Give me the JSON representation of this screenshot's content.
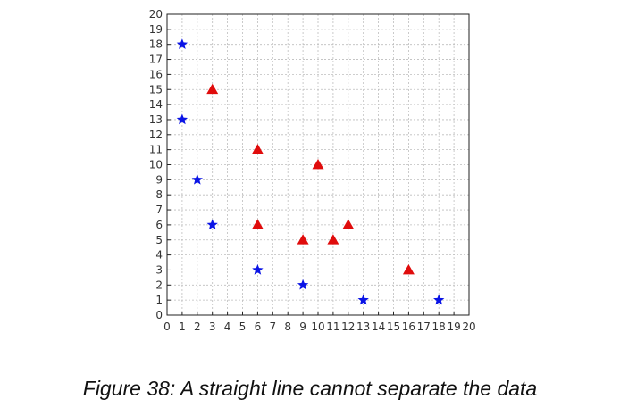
{
  "chart_data": {
    "type": "scatter",
    "title": "",
    "xlabel": "",
    "ylabel": "",
    "xlim": [
      0,
      20
    ],
    "ylim": [
      0,
      20
    ],
    "x_ticks": [
      0,
      1,
      2,
      3,
      4,
      5,
      6,
      7,
      8,
      9,
      10,
      11,
      12,
      13,
      14,
      15,
      16,
      17,
      18,
      19,
      20
    ],
    "y_ticks": [
      0,
      1,
      2,
      3,
      4,
      5,
      6,
      7,
      8,
      9,
      10,
      11,
      12,
      13,
      14,
      15,
      16,
      17,
      18,
      19,
      20
    ],
    "grid": true,
    "series": [
      {
        "marker": "star",
        "color": "#0a14e6",
        "points": [
          [
            1,
            18
          ],
          [
            1,
            13
          ],
          [
            2,
            9
          ],
          [
            3,
            6
          ],
          [
            6,
            3
          ],
          [
            9,
            2
          ],
          [
            13,
            1
          ],
          [
            18,
            1
          ]
        ]
      },
      {
        "marker": "triangle",
        "color": "#e00c0c",
        "points": [
          [
            3,
            15
          ],
          [
            6,
            11
          ],
          [
            10,
            10
          ],
          [
            6,
            6
          ],
          [
            9,
            5
          ],
          [
            11,
            5
          ],
          [
            12,
            6
          ],
          [
            16,
            3
          ]
        ]
      }
    ]
  },
  "caption": "Figure 38: A straight line cannot separate the data"
}
